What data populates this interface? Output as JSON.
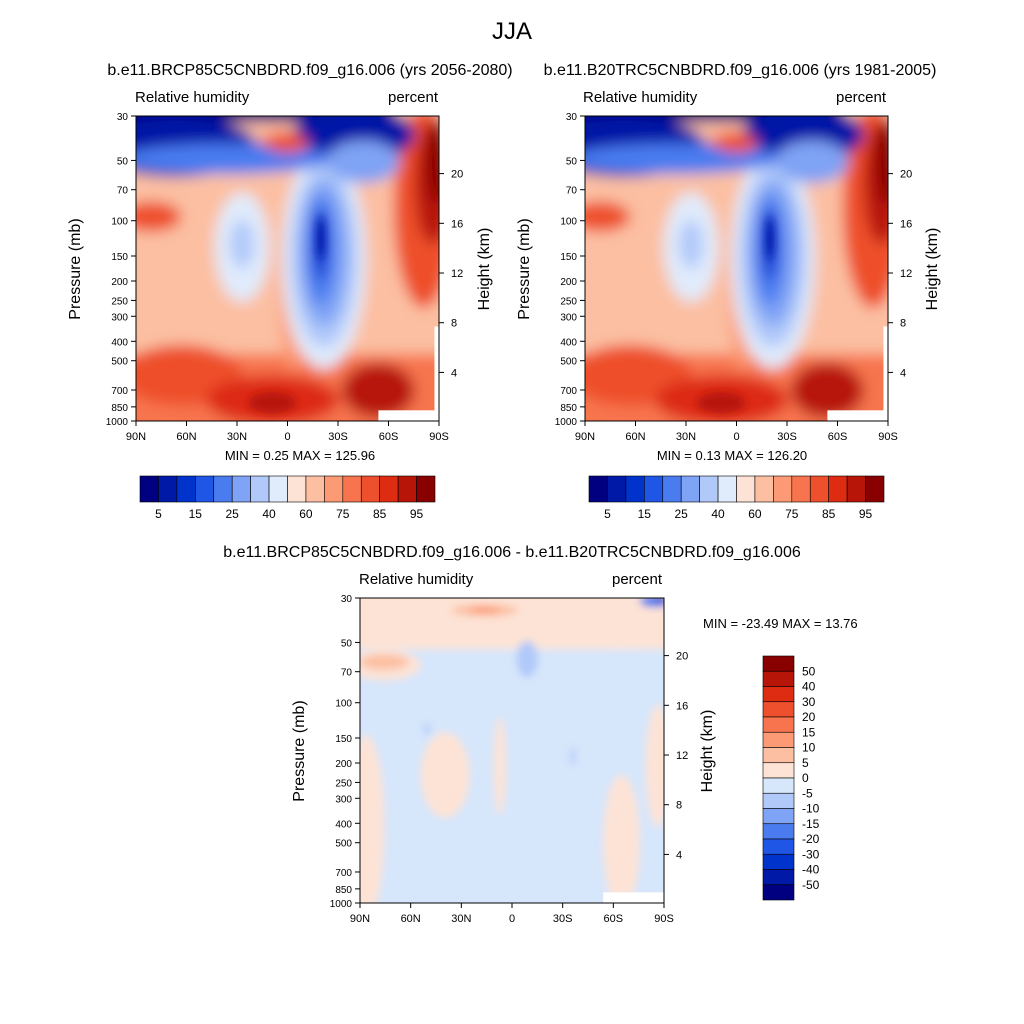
{
  "page_title": "JJA",
  "panels": [
    {
      "title": "b.e11.BRCP85C5CNBDRD.f09_g16.006 (yrs 2056-2080)",
      "left_label": "Relative humidity",
      "right_label": "percent",
      "ylabel": "Pressure (mb)",
      "y2label": "Height (km)",
      "minmax": "MIN =   0.25  MAX = 125.96"
    },
    {
      "title": "b.e11.B20TRC5CNBDRD.f09_g16.006 (yrs 1981-2005)",
      "left_label": "Relative humidity",
      "right_label": "percent",
      "ylabel": "Pressure (mb)",
      "y2label": "Height (km)",
      "minmax": "MIN =   0.13  MAX = 126.20"
    },
    {
      "title": "b.e11.BRCP85C5CNBDRD.f09_g16.006 - b.e11.B20TRC5CNBDRD.f09_g16.006",
      "left_label": "Relative humidity",
      "right_label": "percent",
      "ylabel": "Pressure (mb)",
      "y2label": "Height (km)",
      "minmax": "MIN = -23.49  MAX =  13.76"
    }
  ],
  "chart_data": [
    {
      "type": "heatmap",
      "title": "b.e11.BRCP85C5CNBDRD.f09_g16.006 (yrs 2056-2080)",
      "variable": "Relative humidity",
      "units": "percent",
      "ylabel": "Pressure (mb)",
      "y2label": "Height (km)",
      "x_ticks": [
        "90N",
        "60N",
        "30N",
        "0",
        "30S",
        "60S",
        "90S"
      ],
      "y_ticks": [
        "30",
        "50",
        "70",
        "100",
        "150",
        "200",
        "250",
        "300",
        "400",
        "500",
        "700",
        "850",
        "1000"
      ],
      "y2_ticks": [
        "20",
        "16",
        "12",
        "8",
        "4"
      ],
      "y_scale": "log",
      "ylim": [
        1000,
        30
      ],
      "min": 0.25,
      "max": 125.96,
      "colorbar_labels": [
        "5",
        "15",
        "25",
        "40",
        "60",
        "75",
        "85",
        "95"
      ],
      "colorbar_orientation": "horizontal"
    },
    {
      "type": "heatmap",
      "title": "b.e11.B20TRC5CNBDRD.f09_g16.006 (yrs 1981-2005)",
      "variable": "Relative humidity",
      "units": "percent",
      "ylabel": "Pressure (mb)",
      "y2label": "Height (km)",
      "x_ticks": [
        "90N",
        "60N",
        "30N",
        "0",
        "30S",
        "60S",
        "90S"
      ],
      "y_ticks": [
        "30",
        "50",
        "70",
        "100",
        "150",
        "200",
        "250",
        "300",
        "400",
        "500",
        "700",
        "850",
        "1000"
      ],
      "y2_ticks": [
        "20",
        "16",
        "12",
        "8",
        "4"
      ],
      "y_scale": "log",
      "ylim": [
        1000,
        30
      ],
      "min": 0.13,
      "max": 126.2,
      "colorbar_labels": [
        "5",
        "15",
        "25",
        "40",
        "60",
        "75",
        "85",
        "95"
      ],
      "colorbar_orientation": "horizontal"
    },
    {
      "type": "heatmap",
      "title": "b.e11.BRCP85C5CNBDRD.f09_g16.006 - b.e11.B20TRC5CNBDRD.f09_g16.006",
      "variable": "Relative humidity",
      "units": "percent",
      "ylabel": "Pressure (mb)",
      "y2label": "Height (km)",
      "x_ticks": [
        "90N",
        "60N",
        "30N",
        "0",
        "30S",
        "60S",
        "90S"
      ],
      "y_ticks": [
        "30",
        "50",
        "70",
        "100",
        "150",
        "200",
        "250",
        "300",
        "400",
        "500",
        "700",
        "850",
        "1000"
      ],
      "y2_ticks": [
        "20",
        "16",
        "12",
        "8",
        "4"
      ],
      "y_scale": "log",
      "ylim": [
        1000,
        30
      ],
      "min": -23.49,
      "max": 13.76,
      "colorbar_labels": [
        "50",
        "40",
        "30",
        "20",
        "15",
        "10",
        "5",
        "0",
        "-5",
        "-10",
        "-15",
        "-20",
        "-30",
        "-40",
        "-50"
      ],
      "colorbar_orientation": "vertical"
    }
  ],
  "colors": {
    "rh_scale": [
      "#000080",
      "#0019a6",
      "#0033cc",
      "#1f56e6",
      "#4a7cf0",
      "#7fa3f5",
      "#b1c9f9",
      "#e0ebfc",
      "#fde3d5",
      "#fcbfa2",
      "#fb9a75",
      "#f7744e",
      "#ee4f2c",
      "#dd2c12",
      "#b71507",
      "#890000"
    ],
    "diff_scale": [
      "#890000",
      "#b71507",
      "#dd2c12",
      "#ee4f2c",
      "#f7744e",
      "#fb9a75",
      "#fcbfa2",
      "#fde3d5",
      "#d6e6fb",
      "#b1c9f9",
      "#7fa3f5",
      "#4a7cf0",
      "#1f56e6",
      "#0033cc",
      "#0019a6",
      "#000080"
    ]
  }
}
